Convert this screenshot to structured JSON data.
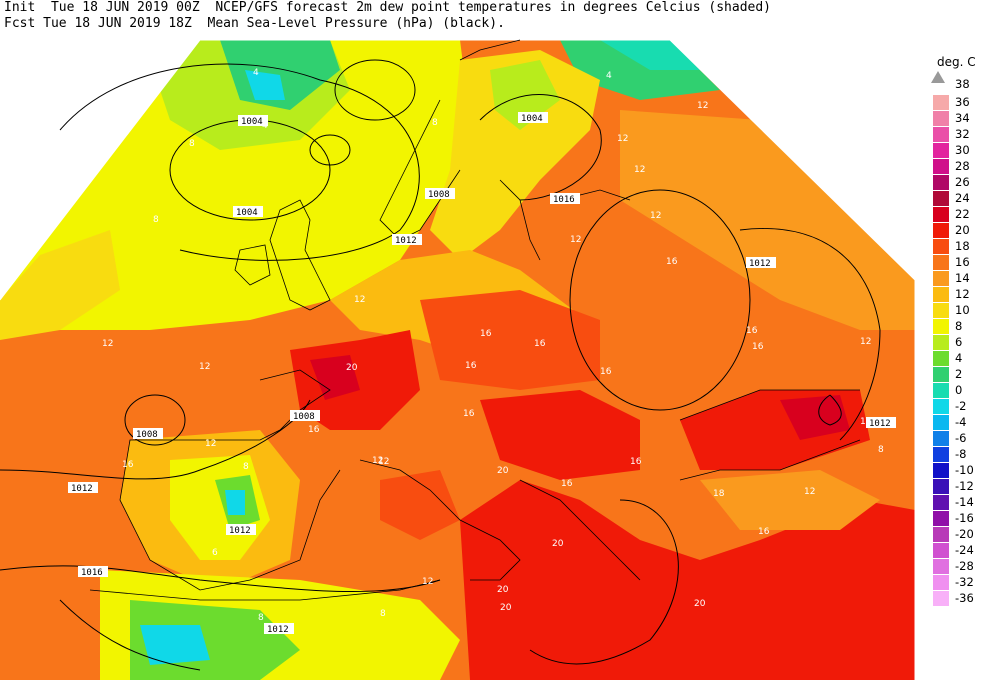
{
  "header": {
    "line1": "Init  Tue 18 JUN 2019 00Z  NCEP/GFS forecast 2m dew point temperatures in degrees Celcius (shaded)",
    "line2": "Fcst Tue 18 JUN 2019 18Z  Mean Sea-Level Pressure (hPa) (black)."
  },
  "legend": {
    "unit": "deg. C",
    "top_value": "38",
    "levels": [
      {
        "label": "36",
        "color": "#f6a9a9"
      },
      {
        "label": "34",
        "color": "#f080a8"
      },
      {
        "label": "32",
        "color": "#ea4fa8"
      },
      {
        "label": "30",
        "color": "#e2249e"
      },
      {
        "label": "28",
        "color": "#d0108a"
      },
      {
        "label": "26",
        "color": "#b00866"
      },
      {
        "label": "24",
        "color": "#b00a38"
      },
      {
        "label": "22",
        "color": "#d8001e"
      },
      {
        "label": "20",
        "color": "#f01a08"
      },
      {
        "label": "18",
        "color": "#f84d10"
      },
      {
        "label": "16",
        "color": "#f8751a"
      },
      {
        "label": "14",
        "color": "#fa9a1e"
      },
      {
        "label": "12",
        "color": "#fbbb10"
      },
      {
        "label": "10",
        "color": "#f8dc10"
      },
      {
        "label": "8",
        "color": "#f2f500"
      },
      {
        "label": "6",
        "color": "#b8ec1c"
      },
      {
        "label": "4",
        "color": "#6cdc2e"
      },
      {
        "label": "2",
        "color": "#30d070"
      },
      {
        "label": "0",
        "color": "#18dcb0"
      },
      {
        "label": "-2",
        "color": "#10d8e8"
      },
      {
        "label": "-4",
        "color": "#0ab8f0"
      },
      {
        "label": "-6",
        "color": "#1080e8"
      },
      {
        "label": "-8",
        "color": "#1040e0"
      },
      {
        "label": "-10",
        "color": "#1010c8"
      },
      {
        "label": "-12",
        "color": "#3a10b8"
      },
      {
        "label": "-14",
        "color": "#6010b0"
      },
      {
        "label": "-16",
        "color": "#9010a8"
      },
      {
        "label": "-20",
        "color": "#b83ab8"
      },
      {
        "label": "-24",
        "color": "#d050d0"
      },
      {
        "label": "-28",
        "color": "#e070e0"
      },
      {
        "label": "-32",
        "color": "#f090f0"
      },
      {
        "label": "-36",
        "color": "#f8b0f8"
      }
    ]
  },
  "isobar_labels": [
    "1004",
    "1004",
    "1004",
    "1008",
    "1016",
    "1012",
    "1012",
    "1012",
    "1008",
    "1008",
    "1012",
    "1012",
    "1012",
    "1016",
    "1012"
  ],
  "temp_labels": [
    "4",
    "4",
    "8",
    "8",
    "12",
    "12",
    "12",
    "12",
    "12",
    "16",
    "16",
    "16",
    "16",
    "16",
    "16",
    "20",
    "20",
    "20",
    "20",
    "20",
    "8",
    "8",
    "12",
    "16",
    "12",
    "12",
    "16",
    "16",
    "18",
    "4",
    "12",
    "16",
    "12",
    "12",
    "16",
    "16",
    "20",
    "16",
    "12",
    "6",
    "8",
    "16",
    "8",
    "12",
    "12",
    "8"
  ]
}
